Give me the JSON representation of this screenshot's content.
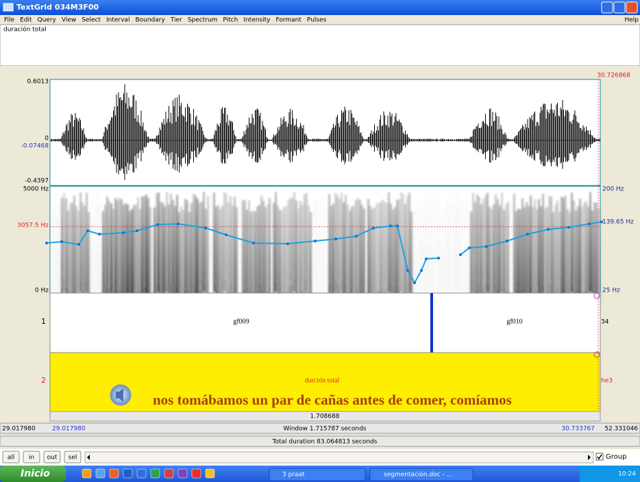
{
  "window": {
    "title": "TextGrid 034M3F00",
    "menu": [
      "File",
      "Edit",
      "Query",
      "View",
      "Select",
      "Interval",
      "Boundary",
      "Tier",
      "Spectrum",
      "Pitch",
      "Intensity",
      "Formant",
      "Pulses"
    ],
    "help": "Help"
  },
  "text_field": "duración total",
  "waveform": {
    "cursor_time": "30.726868",
    "max": "0.6013",
    "zero": "0",
    "cursor_value": "-0.07468",
    "min": "-0.4397"
  },
  "spectrogram": {
    "top": "5000 Hz",
    "cursor": "3057.5 Hz",
    "bottom": "0 Hz",
    "pitch_top": "200 Hz",
    "pitch_cursor": "139.65 Hz",
    "pitch_bottom": "25 Hz"
  },
  "tiers": [
    {
      "number": "1",
      "intervals": [
        "gf009",
        "gf010"
      ],
      "count": "34"
    },
    {
      "number": "2",
      "intervals": [
        "durción total"
      ],
      "count": "he3"
    }
  ],
  "caption": "nos tomábamos un par de cañas antes de comer, comíamos",
  "selection": "1.708688",
  "time_row": {
    "start": "29.017980",
    "window_start": "29.017980",
    "window": "Window 1.715787 seconds",
    "window_end": "30.733767",
    "end": "52.331046"
  },
  "total": "Total duration 83.064813 seconds",
  "buttons": [
    "all",
    "in",
    "out",
    "sel"
  ],
  "group": "Group",
  "taskbar": {
    "start": "Inicio",
    "tasks": [
      "3 praat",
      "segmentación.doc - ..."
    ],
    "clock": "10:24"
  }
}
